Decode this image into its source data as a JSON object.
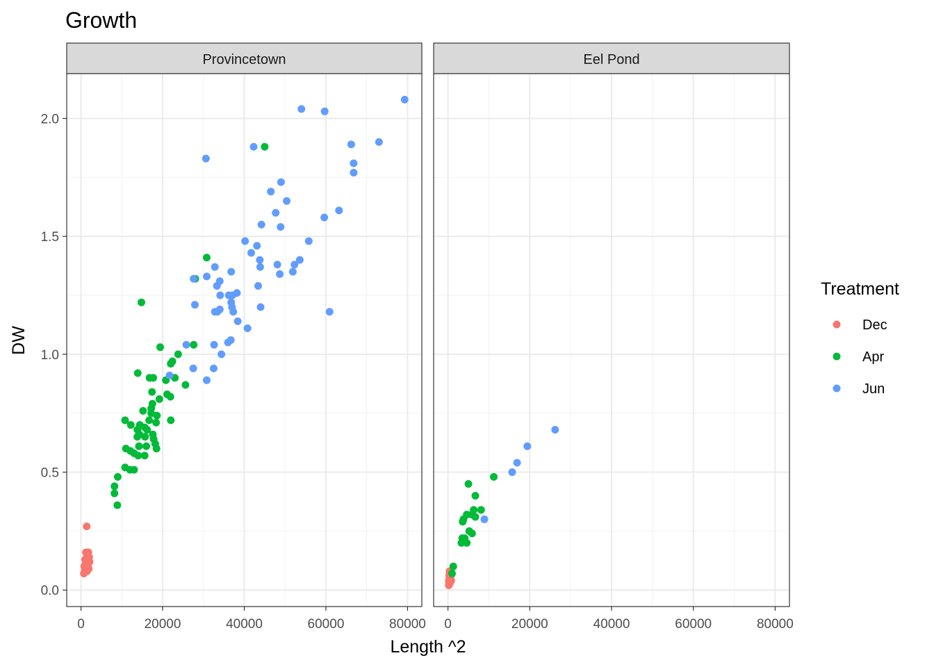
{
  "chart_data": {
    "type": "scatter",
    "title": "Growth",
    "xlabel": "Length ^2",
    "ylabel": "DW",
    "xlim": [
      -3500,
      83500
    ],
    "ylim": [
      -0.07,
      2.19
    ],
    "x_ticks": [
      0,
      20000,
      40000,
      60000,
      80000
    ],
    "x_tick_labels": [
      "0",
      "20000",
      "40000",
      "60000",
      "80000"
    ],
    "y_ticks": [
      0.0,
      0.5,
      1.0,
      1.5,
      2.0
    ],
    "y_tick_labels": [
      "0.0",
      "0.5",
      "1.0",
      "1.5",
      "2.0"
    ],
    "grid": true,
    "legend": {
      "title": "Treatment",
      "position": "right",
      "entries": [
        {
          "label": "Dec",
          "color": "#F8766D"
        },
        {
          "label": "Apr",
          "color": "#00BA38"
        },
        {
          "label": "Jun",
          "color": "#619CFF"
        }
      ]
    },
    "panels": [
      {
        "strip": "Provincetown",
        "series": [
          {
            "name": "Dec",
            "color": "#F8766D",
            "points": [
              [
                1400,
                0.27
              ],
              [
                1200,
                0.16
              ],
              [
                1800,
                0.16
              ],
              [
                1500,
                0.15
              ],
              [
                2000,
                0.14
              ],
              [
                1000,
                0.13
              ],
              [
                1600,
                0.12
              ],
              [
                1200,
                0.11
              ],
              [
                800,
                0.1
              ],
              [
                1700,
                0.1
              ],
              [
                1300,
                0.09
              ],
              [
                1900,
                0.09
              ],
              [
                900,
                0.08
              ],
              [
                1500,
                0.08
              ],
              [
                700,
                0.07
              ],
              [
                1100,
                0.11
              ],
              [
                2100,
                0.12
              ],
              [
                1600,
                0.14
              ],
              [
                1000,
                0.1
              ],
              [
                1800,
                0.09
              ]
            ]
          },
          {
            "name": "Apr",
            "color": "#00BA38",
            "points": [
              [
                45000,
                1.88
              ],
              [
                30800,
                1.41
              ],
              [
                14800,
                1.22
              ],
              [
                28000,
                1.32
              ],
              [
                19400,
                1.03
              ],
              [
                27600,
                1.04
              ],
              [
                23800,
                1.0
              ],
              [
                22400,
                0.97
              ],
              [
                13900,
                0.92
              ],
              [
                16800,
                0.9
              ],
              [
                17700,
                0.9
              ],
              [
                20800,
                0.89
              ],
              [
                22000,
                0.96
              ],
              [
                23000,
                0.9
              ],
              [
                25600,
                0.87
              ],
              [
                17400,
                0.84
              ],
              [
                21100,
                0.83
              ],
              [
                21900,
                0.82
              ],
              [
                19200,
                0.81
              ],
              [
                17500,
                0.79
              ],
              [
                17200,
                0.77
              ],
              [
                15200,
                0.76
              ],
              [
                17200,
                0.75
              ],
              [
                18600,
                0.74
              ],
              [
                10800,
                0.72
              ],
              [
                16700,
                0.72
              ],
              [
                18400,
                0.71
              ],
              [
                22000,
                0.72
              ],
              [
                14400,
                0.7
              ],
              [
                12200,
                0.7
              ],
              [
                15600,
                0.69
              ],
              [
                13800,
                0.68
              ],
              [
                16200,
                0.68
              ],
              [
                14300,
                0.66
              ],
              [
                15700,
                0.65
              ],
              [
                17600,
                0.66
              ],
              [
                13800,
                0.65
              ],
              [
                17800,
                0.64
              ],
              [
                18200,
                0.62
              ],
              [
                14200,
                0.61
              ],
              [
                16000,
                0.61
              ],
              [
                11000,
                0.6
              ],
              [
                12100,
                0.59
              ],
              [
                13000,
                0.58
              ],
              [
                18500,
                0.6
              ],
              [
                14000,
                0.57
              ],
              [
                15600,
                0.57
              ],
              [
                10800,
                0.52
              ],
              [
                12000,
                0.51
              ],
              [
                13000,
                0.51
              ],
              [
                9000,
                0.48
              ],
              [
                8200,
                0.44
              ],
              [
                8200,
                0.41
              ],
              [
                8900,
                0.36
              ]
            ]
          },
          {
            "name": "Jun",
            "color": "#619CFF",
            "points": [
              [
                79300,
                2.08
              ],
              [
                54000,
                2.04
              ],
              [
                59700,
                2.03
              ],
              [
                42300,
                1.88
              ],
              [
                30600,
                1.83
              ],
              [
                73000,
                1.9
              ],
              [
                66200,
                1.89
              ],
              [
                66800,
                1.81
              ],
              [
                66800,
                1.77
              ],
              [
                49000,
                1.73
              ],
              [
                46500,
                1.69
              ],
              [
                50400,
                1.65
              ],
              [
                63200,
                1.61
              ],
              [
                47700,
                1.6
              ],
              [
                59600,
                1.58
              ],
              [
                44200,
                1.55
              ],
              [
                48900,
                1.54
              ],
              [
                40200,
                1.48
              ],
              [
                55800,
                1.48
              ],
              [
                43100,
                1.46
              ],
              [
                41700,
                1.43
              ],
              [
                43800,
                1.4
              ],
              [
                53600,
                1.4
              ],
              [
                48100,
                1.38
              ],
              [
                52300,
                1.38
              ],
              [
                32800,
                1.37
              ],
              [
                43900,
                1.37
              ],
              [
                51900,
                1.35
              ],
              [
                36800,
                1.35
              ],
              [
                48700,
                1.34
              ],
              [
                30800,
                1.33
              ],
              [
                27600,
                1.32
              ],
              [
                34000,
                1.31
              ],
              [
                43400,
                1.29
              ],
              [
                33300,
                1.29
              ],
              [
                36200,
                1.25
              ],
              [
                34100,
                1.25
              ],
              [
                37100,
                1.25
              ],
              [
                38200,
                1.26
              ],
              [
                36800,
                1.22
              ],
              [
                37000,
                1.2
              ],
              [
                44000,
                1.2
              ],
              [
                27900,
                1.21
              ],
              [
                34000,
                1.19
              ],
              [
                33400,
                1.18
              ],
              [
                60900,
                1.18
              ],
              [
                32800,
                1.18
              ],
              [
                37300,
                1.18
              ],
              [
                38400,
                1.14
              ],
              [
                40800,
                1.11
              ],
              [
                36700,
                1.06
              ],
              [
                36000,
                1.05
              ],
              [
                32600,
                1.04
              ],
              [
                25800,
                1.04
              ],
              [
                34400,
                1.0
              ],
              [
                27500,
                0.94
              ],
              [
                32500,
                0.94
              ],
              [
                21700,
                0.91
              ],
              [
                30800,
                0.89
              ]
            ]
          }
        ]
      },
      {
        "strip": "Eel Pond",
        "series": [
          {
            "name": "Dec",
            "color": "#F8766D",
            "points": [
              [
                200,
                0.02
              ],
              [
                300,
                0.03
              ],
              [
                400,
                0.04
              ],
              [
                500,
                0.05
              ],
              [
                700,
                0.06
              ],
              [
                900,
                0.07
              ],
              [
                400,
                0.08
              ],
              [
                600,
                0.05
              ],
              [
                300,
                0.06
              ],
              [
                800,
                0.04
              ],
              [
                500,
                0.03
              ],
              [
                200,
                0.04
              ],
              [
                700,
                0.08
              ],
              [
                400,
                0.07
              ]
            ]
          },
          {
            "name": "Apr",
            "color": "#00BA38",
            "points": [
              [
                1300,
                0.1
              ],
              [
                1000,
                0.07
              ],
              [
                11200,
                0.48
              ],
              [
                5000,
                0.45
              ],
              [
                6700,
                0.4
              ],
              [
                8100,
                0.34
              ],
              [
                6300,
                0.34
              ],
              [
                5800,
                0.32
              ],
              [
                6700,
                0.31
              ],
              [
                4600,
                0.32
              ],
              [
                3800,
                0.3
              ],
              [
                3600,
                0.29
              ],
              [
                5200,
                0.25
              ],
              [
                5900,
                0.24
              ],
              [
                3500,
                0.22
              ],
              [
                4100,
                0.22
              ],
              [
                3300,
                0.2
              ],
              [
                4600,
                0.2
              ],
              [
                3900,
                0.21
              ]
            ]
          },
          {
            "name": "Jun",
            "color": "#619CFF",
            "points": [
              [
                26200,
                0.68
              ],
              [
                19400,
                0.61
              ],
              [
                16900,
                0.54
              ],
              [
                15700,
                0.5
              ],
              [
                8900,
                0.3
              ]
            ]
          }
        ]
      }
    ]
  }
}
